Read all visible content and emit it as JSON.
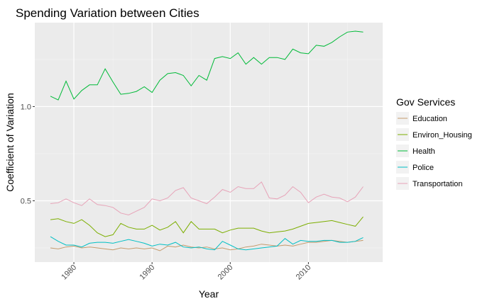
{
  "chart_data": {
    "type": "line",
    "title": "Spending Variation between Cities",
    "xlabel": "Year",
    "ylabel": "Coefficient of Variation",
    "xlim": [
      1975.0,
      2019.5
    ],
    "ylim": [
      0.175,
      1.445
    ],
    "x_ticks": [
      1980,
      1990,
      2000,
      2010
    ],
    "y_ticks": [
      0.5,
      1.0
    ],
    "y_tick_labels": [
      "0.5",
      "1.0"
    ],
    "grid": true,
    "legend": {
      "title": "Gov Services",
      "position": "right"
    },
    "x": [
      1977,
      1978,
      1979,
      1980,
      1981,
      1982,
      1983,
      1984,
      1985,
      1986,
      1987,
      1988,
      1989,
      1990,
      1991,
      1992,
      1993,
      1994,
      1995,
      1996,
      1997,
      1998,
      1999,
      2000,
      2001,
      2002,
      2003,
      2004,
      2005,
      2006,
      2007,
      2008,
      2009,
      2010,
      2011,
      2012,
      2013,
      2014,
      2015,
      2016,
      2017
    ],
    "series": [
      {
        "name": "Education",
        "color": "#C49A6C",
        "values": [
          0.25,
          0.245,
          0.255,
          0.26,
          0.25,
          0.255,
          0.25,
          0.245,
          0.24,
          0.25,
          0.245,
          0.25,
          0.245,
          0.25,
          0.235,
          0.26,
          0.255,
          0.265,
          0.255,
          0.25,
          0.255,
          0.245,
          0.25,
          0.24,
          0.245,
          0.255,
          0.26,
          0.27,
          0.265,
          0.26,
          0.265,
          0.26,
          0.27,
          0.28,
          0.28,
          0.285,
          0.29,
          0.285,
          0.28,
          0.285,
          0.29
        ]
      },
      {
        "name": "Environ_Housing",
        "color": "#7CAE00",
        "values": [
          0.4,
          0.405,
          0.39,
          0.38,
          0.4,
          0.37,
          0.33,
          0.31,
          0.32,
          0.38,
          0.36,
          0.35,
          0.35,
          0.37,
          0.345,
          0.36,
          0.39,
          0.33,
          0.39,
          0.35,
          0.35,
          0.35,
          0.33,
          0.345,
          0.355,
          0.355,
          0.355,
          0.34,
          0.33,
          0.335,
          0.34,
          0.35,
          0.365,
          0.38,
          0.385,
          0.39,
          0.395,
          0.385,
          0.375,
          0.365,
          0.415
        ]
      },
      {
        "name": "Health",
        "color": "#00BA38",
        "values": [
          1.055,
          1.035,
          1.135,
          1.04,
          1.085,
          1.115,
          1.115,
          1.2,
          1.13,
          1.065,
          1.07,
          1.08,
          1.105,
          1.075,
          1.14,
          1.175,
          1.18,
          1.165,
          1.11,
          1.165,
          1.14,
          1.255,
          1.265,
          1.255,
          1.285,
          1.225,
          1.26,
          1.225,
          1.26,
          1.26,
          1.25,
          1.305,
          1.285,
          1.28,
          1.325,
          1.32,
          1.34,
          1.37,
          1.395,
          1.4,
          1.395
        ]
      },
      {
        "name": "Police",
        "color": "#00BFC4",
        "values": [
          0.31,
          0.285,
          0.265,
          0.265,
          0.255,
          0.275,
          0.28,
          0.28,
          0.275,
          0.285,
          0.295,
          0.285,
          0.275,
          0.26,
          0.27,
          0.265,
          0.28,
          0.255,
          0.25,
          0.255,
          0.245,
          0.24,
          0.285,
          0.265,
          0.245,
          0.24,
          0.245,
          0.25,
          0.255,
          0.26,
          0.3,
          0.27,
          0.29,
          0.285,
          0.285,
          0.29,
          0.29,
          0.28,
          0.28,
          0.285,
          0.305
        ]
      },
      {
        "name": "Transportation",
        "color": "#E7A3B8",
        "values": [
          0.485,
          0.49,
          0.51,
          0.49,
          0.475,
          0.51,
          0.48,
          0.475,
          0.465,
          0.435,
          0.425,
          0.445,
          0.465,
          0.51,
          0.5,
          0.515,
          0.555,
          0.57,
          0.515,
          0.5,
          0.485,
          0.52,
          0.56,
          0.545,
          0.575,
          0.565,
          0.565,
          0.6,
          0.515,
          0.51,
          0.53,
          0.575,
          0.545,
          0.49,
          0.52,
          0.535,
          0.52,
          0.515,
          0.495,
          0.52,
          0.575
        ]
      }
    ]
  }
}
